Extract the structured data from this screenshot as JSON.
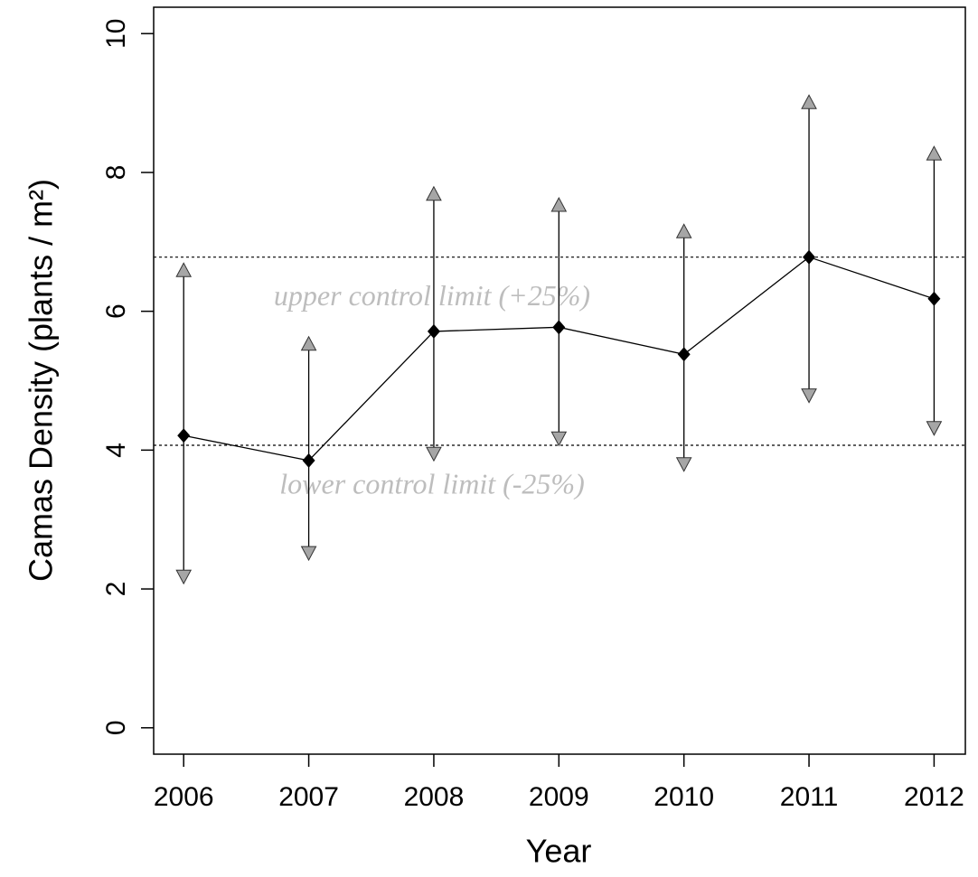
{
  "chart_data": {
    "type": "line",
    "x_label": "Year",
    "y_label": "Camas Density (plants / m²)",
    "x": [
      2006,
      2007,
      2008,
      2009,
      2010,
      2011,
      2012
    ],
    "series": [
      {
        "color": "#000000",
        "values": [
          4.21,
          3.85,
          5.71,
          5.77,
          5.38,
          6.78,
          6.18
        ],
        "upper": [
          6.59,
          5.53,
          7.69,
          7.53,
          7.15,
          9.01,
          8.27
        ],
        "lower": [
          2.18,
          2.52,
          3.95,
          4.17,
          3.8,
          4.79,
          4.32
        ],
        "arrow_color": "#a6a6a6"
      }
    ],
    "reference_lines": [
      {
        "value": 6.78,
        "label": "upper control limit (+25%)"
      },
      {
        "value": 4.07,
        "label": "lower control limit (-25%)"
      }
    ],
    "xlim": [
      2005.76,
      2012.25
    ],
    "ylim": [
      -0.38,
      10.38
    ],
    "xticks": [
      2006,
      2007,
      2008,
      2009,
      2010,
      2011,
      2012
    ],
    "yticks": [
      0,
      2,
      4,
      6,
      8,
      10
    ]
  }
}
